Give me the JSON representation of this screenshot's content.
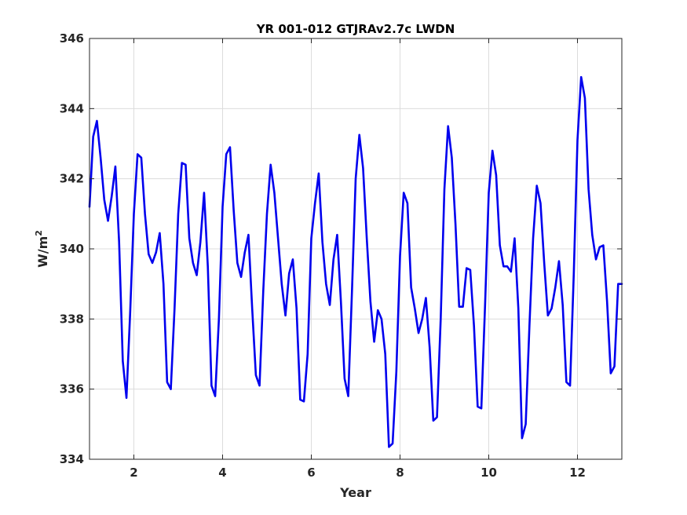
{
  "chart_data": {
    "type": "line",
    "title": "YR 001-012 GTJRAv2.7c LWDN",
    "xlabel": "Year",
    "ylabel": "W/m",
    "ylabel_sup": "2",
    "xlim": [
      1,
      13
    ],
    "ylim": [
      334,
      346
    ],
    "xticks": [
      2,
      4,
      6,
      8,
      10,
      12
    ],
    "yticks": [
      334,
      336,
      338,
      340,
      342,
      344,
      346
    ],
    "grid": true,
    "line_color": "#0000ee",
    "series": [
      {
        "x": [
          1.0,
          1.083,
          1.167,
          1.25,
          1.333,
          1.417,
          1.5,
          1.583,
          1.667,
          1.75,
          1.833,
          1.917,
          2.0,
          2.083,
          2.167,
          2.25,
          2.333,
          2.417,
          2.5,
          2.583,
          2.667,
          2.75,
          2.833,
          2.917,
          3.0,
          3.083,
          3.167,
          3.25,
          3.333,
          3.417,
          3.5,
          3.583,
          3.667,
          3.75,
          3.833,
          3.917,
          4.0,
          4.083,
          4.167,
          4.25,
          4.333,
          4.417,
          4.5,
          4.583,
          4.667,
          4.75,
          4.833,
          4.917,
          5.0,
          5.083,
          5.167,
          5.25,
          5.333,
          5.417,
          5.5,
          5.583,
          5.667,
          5.75,
          5.833,
          5.917,
          6.0,
          6.083,
          6.167,
          6.25,
          6.333,
          6.417,
          6.5,
          6.583,
          6.667,
          6.75,
          6.833,
          6.917,
          7.0,
          7.083,
          7.167,
          7.25,
          7.333,
          7.417,
          7.5,
          7.583,
          7.667,
          7.75,
          7.833,
          7.917,
          8.0,
          8.083,
          8.167,
          8.25,
          8.333,
          8.417,
          8.5,
          8.583,
          8.667,
          8.75,
          8.833,
          8.917,
          9.0,
          9.083,
          9.167,
          9.25,
          9.333,
          9.417,
          9.5,
          9.583,
          9.667,
          9.75,
          9.833,
          9.917,
          10.0,
          10.083,
          10.167,
          10.25,
          10.333,
          10.417,
          10.5,
          10.583,
          10.667,
          10.75,
          10.833,
          10.917,
          11.0,
          11.083,
          11.167,
          11.25,
          11.333,
          11.417,
          11.5,
          11.583,
          11.667,
          11.75,
          11.833,
          11.917,
          12.0,
          12.083,
          12.167,
          12.25,
          12.333,
          12.417,
          12.5,
          12.583,
          12.667,
          12.75,
          12.833,
          12.917,
          13.0
        ],
        "values": [
          341.2,
          343.2,
          343.65,
          342.6,
          341.4,
          340.8,
          341.5,
          342.35,
          340.2,
          336.8,
          335.75,
          338.2,
          341.0,
          342.7,
          342.6,
          341.0,
          339.85,
          339.6,
          339.9,
          340.45,
          339.0,
          336.2,
          336.0,
          338.3,
          341.0,
          342.45,
          342.4,
          340.3,
          339.6,
          339.25,
          340.2,
          341.6,
          339.5,
          336.1,
          335.8,
          338.0,
          341.2,
          342.7,
          342.9,
          341.1,
          339.6,
          339.2,
          339.9,
          340.4,
          338.3,
          336.4,
          336.1,
          338.8,
          341.0,
          342.4,
          341.6,
          340.3,
          339.0,
          338.1,
          339.3,
          339.7,
          338.3,
          335.7,
          335.65,
          337.0,
          340.3,
          341.3,
          342.15,
          340.2,
          339.0,
          338.4,
          339.7,
          340.4,
          338.5,
          336.3,
          335.8,
          338.8,
          342.0,
          343.25,
          342.3,
          340.3,
          338.5,
          337.35,
          338.25,
          338.0,
          337.0,
          334.35,
          334.45,
          336.5,
          339.8,
          341.6,
          341.3,
          338.9,
          338.3,
          337.6,
          338.0,
          338.6,
          337.2,
          335.1,
          335.2,
          338.0,
          341.7,
          343.5,
          342.6,
          340.7,
          338.35,
          338.35,
          339.45,
          339.4,
          337.8,
          335.5,
          335.45,
          338.4,
          341.6,
          342.8,
          342.1,
          340.1,
          339.5,
          339.5,
          339.35,
          340.3,
          338.3,
          334.6,
          335.0,
          337.8,
          340.3,
          341.8,
          341.3,
          339.6,
          338.1,
          338.3,
          338.9,
          339.65,
          338.4,
          336.2,
          336.1,
          339.3,
          343.1,
          344.9,
          344.3,
          341.7,
          340.4,
          339.7,
          340.05,
          340.1,
          338.5,
          336.45,
          336.65,
          339.0,
          339.0
        ]
      }
    ]
  }
}
